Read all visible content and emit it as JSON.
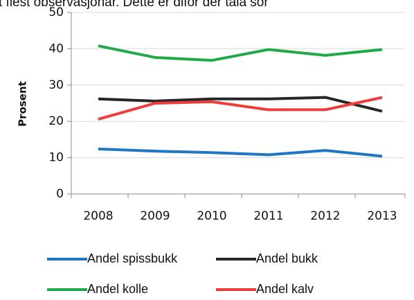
{
  "chart_data": {
    "type": "line",
    "annotation": "t flest observasjonar. Dette er difor der tala sor",
    "y_label": "Prosent",
    "categories": [
      "2008",
      "2009",
      "2010",
      "2011",
      "2012",
      "2013"
    ],
    "series": [
      {
        "name": "Andel spissbukk",
        "color": "#1f77c4",
        "values": [
          12.4,
          11.8,
          11.4,
          10.8,
          12.0,
          10.4
        ]
      },
      {
        "name": "Andel bukk",
        "color": "#262626",
        "values": [
          26.2,
          25.6,
          26.2,
          26.2,
          26.6,
          22.8
        ]
      },
      {
        "name": "Andel kolle",
        "color": "#1faa4a",
        "values": [
          40.8,
          37.6,
          36.8,
          39.8,
          38.2,
          39.8
        ]
      },
      {
        "name": "Andel kalv",
        "color": "#ef3b3b",
        "values": [
          20.6,
          25.0,
          25.4,
          23.2,
          23.2,
          26.6
        ]
      }
    ],
    "ylim": [
      0,
      50
    ],
    "yticks": [
      0,
      10,
      20,
      30,
      40,
      50
    ],
    "grid": true
  }
}
